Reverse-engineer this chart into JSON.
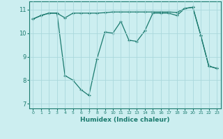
{
  "xlabel": "Humidex (Indice chaleur)",
  "bg_color": "#cceef0",
  "line_color": "#1a7a6e",
  "grid_color": "#aad8dc",
  "marker": "+",
  "xlim": [
    -0.5,
    23.5
  ],
  "ylim": [
    6.8,
    11.35
  ],
  "yticks": [
    7,
    8,
    9,
    10,
    11
  ],
  "xticks": [
    0,
    1,
    2,
    3,
    4,
    5,
    6,
    7,
    8,
    9,
    10,
    11,
    12,
    13,
    14,
    15,
    16,
    17,
    18,
    19,
    20,
    21,
    22,
    23
  ],
  "series1_x": [
    0,
    1,
    2,
    3,
    4,
    5,
    6,
    7,
    8,
    9,
    10,
    11,
    12,
    13,
    14,
    15,
    16,
    17,
    18,
    19,
    20,
    21,
    22,
    23
  ],
  "series1_y": [
    10.6,
    10.75,
    10.85,
    10.85,
    10.65,
    10.85,
    10.85,
    10.85,
    10.85,
    10.87,
    10.9,
    10.9,
    10.9,
    10.9,
    10.9,
    10.9,
    10.9,
    10.9,
    10.88,
    11.05,
    11.1,
    9.9,
    8.6,
    8.5
  ],
  "series2_x": [
    0,
    1,
    2,
    3,
    4,
    5,
    6,
    7,
    8,
    9,
    10,
    11,
    12,
    13,
    14,
    15,
    16,
    17,
    18,
    19,
    20,
    21,
    22,
    23
  ],
  "series2_y": [
    10.6,
    10.75,
    10.85,
    10.85,
    8.2,
    8.0,
    7.6,
    7.35,
    8.9,
    10.05,
    10.0,
    10.5,
    9.7,
    9.65,
    10.1,
    10.85,
    10.85,
    10.85,
    10.75,
    11.05,
    11.1,
    9.9,
    8.6,
    8.5
  ]
}
